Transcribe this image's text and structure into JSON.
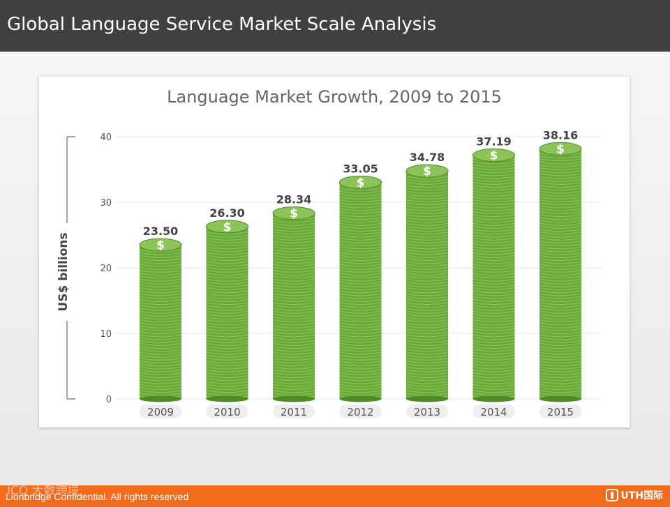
{
  "header": {
    "title": "Global Language Service Market Scale Analysis"
  },
  "footer": {
    "text": "Lionbridge Confidential. All rights reserved",
    "watermark": "ICO 大数跨境",
    "logo_text": "UTH国际"
  },
  "colors": {
    "header_bg": "#404040",
    "footer_bg": "#f26a1b",
    "coin_green": "#6aaa3a",
    "coin_dark": "#4e8a28",
    "coin_light": "#8cc45a"
  },
  "chart_data": {
    "type": "bar",
    "title": "Language Market Growth, 2009 to 2015",
    "xlabel": "",
    "ylabel": "US$ billions",
    "categories": [
      "2009",
      "2010",
      "2011",
      "2012",
      "2013",
      "2014",
      "2015"
    ],
    "values": [
      23.5,
      26.3,
      28.34,
      33.05,
      34.78,
      37.19,
      38.16
    ],
    "value_labels": [
      "23.50",
      "26.30",
      "28.34",
      "33.05",
      "34.78",
      "37.19",
      "38.16"
    ],
    "yticks": [
      "0",
      "10",
      "20",
      "30",
      "40"
    ],
    "ytick_values": [
      0,
      10,
      20,
      30,
      40
    ],
    "ylim": [
      0,
      40
    ],
    "grid": true,
    "legend": "none",
    "bar_style": "stacked-coins",
    "coin_symbol": "$"
  }
}
